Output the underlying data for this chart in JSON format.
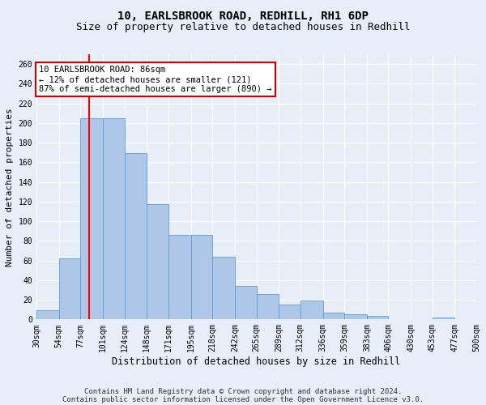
{
  "title_line1": "10, EARLSBROOK ROAD, REDHILL, RH1 6DP",
  "title_line2": "Size of property relative to detached houses in Redhill",
  "xlabel": "Distribution of detached houses by size in Redhill",
  "ylabel": "Number of detached properties",
  "bin_edges": [
    30,
    54,
    77,
    101,
    124,
    148,
    171,
    195,
    218,
    242,
    265,
    289,
    312,
    336,
    359,
    383,
    406,
    430,
    453,
    477,
    500
  ],
  "bar_heights": [
    9,
    62,
    205,
    205,
    169,
    117,
    86,
    86,
    64,
    34,
    26,
    15,
    19,
    7,
    5,
    4,
    0,
    0,
    2,
    0
  ],
  "bar_color": "#aec6e8",
  "bar_edge_color": "#5a9fd4",
  "background_color": "#e8eef8",
  "grid_color": "#ffffff",
  "red_line_x": 86,
  "annotation_text": "10 EARLSBROOK ROAD: 86sqm\n← 12% of detached houses are smaller (121)\n87% of semi-detached houses are larger (890) →",
  "annotation_box_color": "#ffffff",
  "annotation_box_edge_color": "#cc0000",
  "ylim": [
    0,
    270
  ],
  "yticks": [
    0,
    20,
    40,
    60,
    80,
    100,
    120,
    140,
    160,
    180,
    200,
    220,
    240,
    260
  ],
  "footnote_line1": "Contains HM Land Registry data © Crown copyright and database right 2024.",
  "footnote_line2": "Contains public sector information licensed under the Open Government Licence v3.0.",
  "title_fontsize": 10,
  "subtitle_fontsize": 9,
  "xlabel_fontsize": 8.5,
  "ylabel_fontsize": 8,
  "tick_fontsize": 7,
  "annotation_fontsize": 7.5,
  "footnote_fontsize": 6.5
}
